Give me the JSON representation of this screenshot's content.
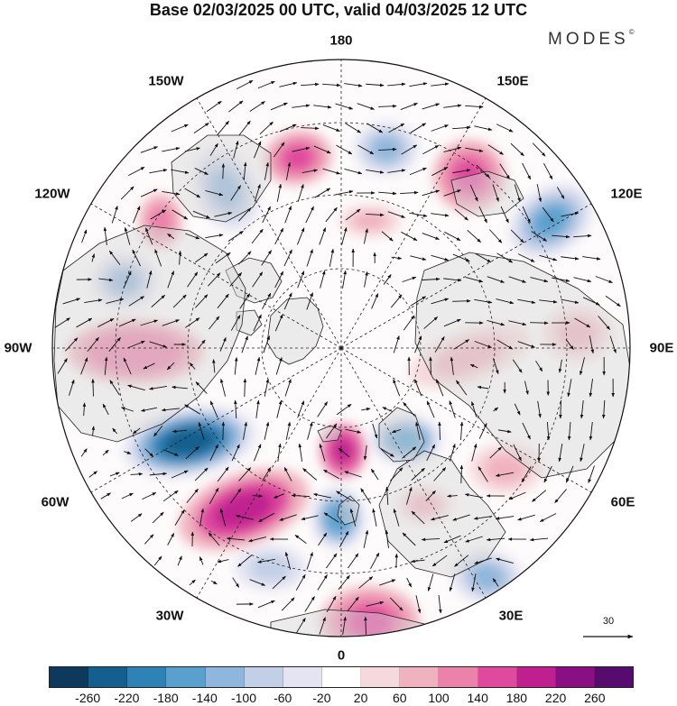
{
  "title": "Base 02/03/2025 00 UTC, valid 04/03/2025 12 UTC",
  "brand": "MODES",
  "brand_mark": "©",
  "longitude_labels": {
    "n180": "180",
    "w150": "150W",
    "e150": "150E",
    "w120": "120W",
    "e120": "120E",
    "w90": "90W",
    "e90": "90E",
    "w60": "60W",
    "e60": "60E",
    "w30": "30W",
    "e30": "30E",
    "s0": "0"
  },
  "reference_vector_label": "30",
  "colorbar": {
    "colors": [
      "#0d3a5c",
      "#145f8d",
      "#2f82b6",
      "#5aa0ce",
      "#8fb6dc",
      "#c2cfe6",
      "#e4e4f2",
      "#ffffff",
      "#f6d9dc",
      "#f0b2bf",
      "#eb82aa",
      "#e04a9e",
      "#c0208f",
      "#8a0f82",
      "#560b6e"
    ],
    "labels": [
      "-260",
      "-220",
      "-180",
      "-140",
      "-100",
      "-60",
      "-20",
      "20",
      "60",
      "100",
      "140",
      "180",
      "220",
      "260"
    ]
  }
}
